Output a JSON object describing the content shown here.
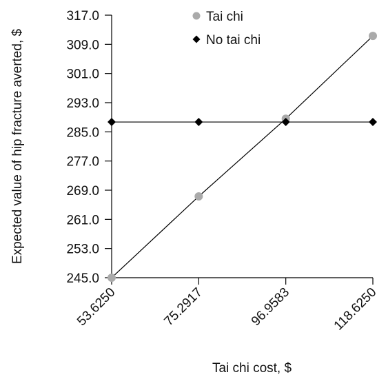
{
  "chart_data": {
    "type": "line",
    "title": "",
    "xlabel": "Tai chi cost, $",
    "ylabel": "Expected value of hip fracture averted, $",
    "x": [
      53.625,
      75.2917,
      96.9583,
      118.625
    ],
    "x_tick_labels": [
      "53.6250",
      "75.2917",
      "96.9583",
      "118.6250"
    ],
    "y_ticks": [
      "317.0",
      "309.0",
      "301.0",
      "293.0",
      "285.0",
      "277.0",
      "269.0",
      "261.0",
      "253.0",
      "245.0"
    ],
    "ylim": [
      245,
      317
    ],
    "grid": false,
    "legend_position": "top-right",
    "series": [
      {
        "name": "Tai chi",
        "marker": "circle",
        "color": "#aaaaaa",
        "line_color": "#000000",
        "values": [
          245.0,
          267.3,
          288.6,
          311.3
        ]
      },
      {
        "name": "No tai chi",
        "marker": "diamond",
        "color": "#000000",
        "line_color": "#000000",
        "values": [
          287.7,
          287.7,
          287.7,
          287.7
        ]
      }
    ]
  }
}
